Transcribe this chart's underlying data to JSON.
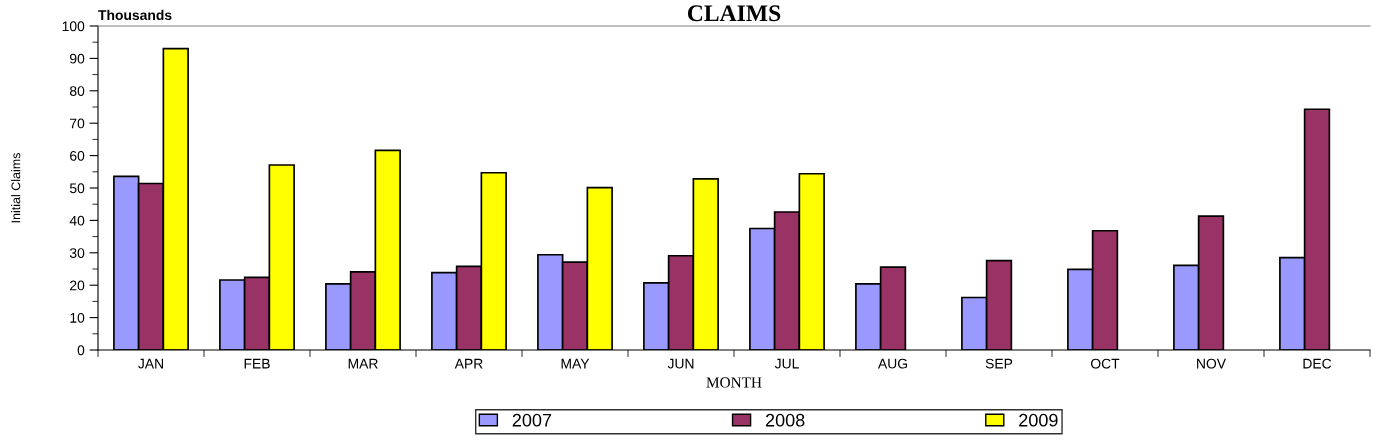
{
  "chart_data": {
    "type": "bar",
    "title": "CLAIMS",
    "xlabel": "MONTH",
    "ylabel": "Initial Claims",
    "annotations": [
      "Thousands"
    ],
    "categories": [
      "JAN",
      "FEB",
      "MAR",
      "APR",
      "MAY",
      "JUN",
      "JUL",
      "AUG",
      "SEP",
      "OCT",
      "NOV",
      "DEC"
    ],
    "series": [
      {
        "name": "2007",
        "color": "#9999ff",
        "values": [
          53.6,
          21.6,
          20.4,
          23.9,
          29.4,
          20.7,
          37.5,
          20.4,
          16.2,
          24.9,
          26.1,
          28.5
        ]
      },
      {
        "name": "2008",
        "color": "#993366",
        "values": [
          51.4,
          22.4,
          24.1,
          25.8,
          27.1,
          29.1,
          42.6,
          25.6,
          27.6,
          36.8,
          41.3,
          74.3
        ]
      },
      {
        "name": "2009",
        "color": "#ffff00",
        "values": [
          93.0,
          57.1,
          61.6,
          54.7,
          50.1,
          52.8,
          54.4,
          null,
          null,
          null,
          null,
          null
        ]
      }
    ],
    "ylim": [
      0,
      100
    ],
    "yticks": [
      0,
      10,
      20,
      30,
      40,
      50,
      60,
      70,
      80,
      90,
      100
    ],
    "grid": false,
    "legend": "bottom"
  }
}
